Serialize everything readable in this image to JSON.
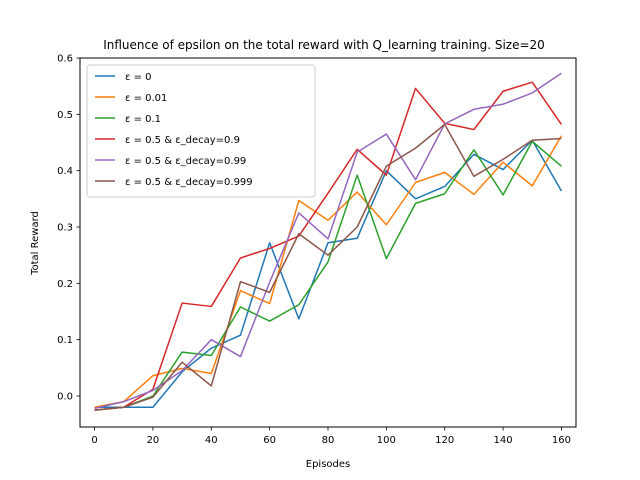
{
  "chart_data": {
    "type": "line",
    "title": "Influence of epsilon on the total reward with Q_learning training. Size=20",
    "xlabel": "Episodes",
    "ylabel": "Total Reward",
    "xlim": [
      -5,
      165
    ],
    "ylim": [
      -0.055,
      0.6
    ],
    "xticks": [
      0,
      20,
      40,
      60,
      80,
      100,
      120,
      140,
      160
    ],
    "yticks": [
      0.0,
      0.1,
      0.2,
      0.3,
      0.4,
      0.5,
      0.6
    ],
    "grid": false,
    "legend_position": "upper-left",
    "x": [
      0,
      10,
      20,
      30,
      40,
      50,
      60,
      70,
      80,
      90,
      100,
      110,
      120,
      130,
      140,
      150,
      160
    ],
    "series": [
      {
        "name": "ε = 0",
        "color": "#1f77b4",
        "values": [
          -0.02,
          -0.02,
          -0.02,
          0.043,
          0.085,
          0.108,
          0.272,
          0.137,
          0.272,
          0.28,
          0.4,
          0.35,
          0.372,
          0.429,
          0.402,
          0.454,
          0.364
        ]
      },
      {
        "name": "ε = 0.01",
        "color": "#ff7f0e",
        "values": [
          -0.02,
          -0.01,
          0.036,
          0.049,
          0.04,
          0.187,
          0.164,
          0.347,
          0.312,
          0.362,
          0.304,
          0.379,
          0.397,
          0.358,
          0.415,
          0.373,
          0.462
        ]
      },
      {
        "name": "ε = 0.1",
        "color": "#2ca02c",
        "values": [
          -0.025,
          -0.02,
          0.0,
          0.078,
          0.072,
          0.158,
          0.133,
          0.162,
          0.238,
          0.392,
          0.244,
          0.342,
          0.359,
          0.437,
          0.357,
          0.452,
          0.408
        ]
      },
      {
        "name": "ε = 0.5 & ε_decay=0.9",
        "color": "#d62728",
        "values": [
          -0.025,
          -0.02,
          0.012,
          0.165,
          0.159,
          0.245,
          0.262,
          0.284,
          0.36,
          0.438,
          0.392,
          0.546,
          0.484,
          0.473,
          0.541,
          0.557,
          0.482
        ]
      },
      {
        "name": "ε = 0.5 & ε_decay=0.99",
        "color": "#9467bd",
        "values": [
          -0.022,
          -0.01,
          0.01,
          0.045,
          0.1,
          0.07,
          0.202,
          0.325,
          0.279,
          0.433,
          0.465,
          0.384,
          0.483,
          0.509,
          0.518,
          0.538,
          0.573
        ]
      },
      {
        "name": "ε = 0.5 & ε_decay=0.999",
        "color": "#8c564b",
        "values": [
          -0.025,
          -0.02,
          -0.002,
          0.06,
          0.018,
          0.203,
          0.184,
          0.288,
          0.25,
          0.3,
          0.408,
          0.44,
          0.482,
          0.39,
          0.42,
          0.454,
          0.457
        ]
      }
    ]
  }
}
